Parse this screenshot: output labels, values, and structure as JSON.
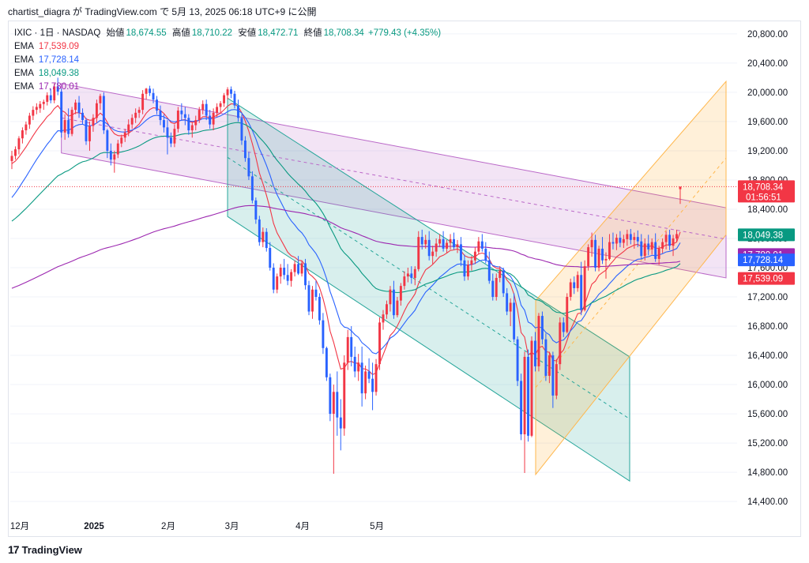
{
  "header": {
    "text": "chartist_diagra が TradingView.com で 5月 13, 2025 06:18 UTC+9 に公開"
  },
  "legend": {
    "symbol": "IXIC · 1日 · NASDAQ",
    "open_label": "始値",
    "open": "18,674.55",
    "high_label": "高値",
    "high": "18,710.22",
    "low_label": "安値",
    "low": "18,472.71",
    "close_label": "終値",
    "close": "18,708.34",
    "change": "+779.43 (+4.35%)",
    "emas": [
      {
        "name": "EMA",
        "value": "17,539.09",
        "color": "#f23645"
      },
      {
        "name": "EMA",
        "value": "17,728.14",
        "color": "#2962ff"
      },
      {
        "name": "EMA",
        "value": "18,049.38",
        "color": "#089981"
      },
      {
        "name": "EMA",
        "value": "17,780.01",
        "color": "#9c27b0"
      }
    ]
  },
  "footer": {
    "brand": "TradingView",
    "logo_text": "17"
  },
  "chart_data": {
    "type": "candlestick",
    "y_ticks": [
      "20,800.00",
      "20,400.00",
      "20,000.00",
      "19,600.00",
      "19,200.00",
      "18,800.00",
      "18,400.00",
      "18,000.00",
      "17,600.00",
      "17,200.00",
      "16,800.00",
      "16,400.00",
      "16,000.00",
      "15,600.00",
      "15,200.00",
      "14,800.00",
      "14,400.00"
    ],
    "y_tick_values": [
      20800,
      20400,
      20000,
      19600,
      19200,
      18800,
      18400,
      18000,
      17600,
      17200,
      16800,
      16400,
      16000,
      15600,
      15200,
      14800,
      14400
    ],
    "ylim": [
      14250,
      20950
    ],
    "x_labels": [
      {
        "label": "12月",
        "bar": 0,
        "bold": false
      },
      {
        "label": "2025",
        "bar": 21,
        "bold": true
      },
      {
        "label": "2月",
        "bar": 42,
        "bold": false
      },
      {
        "label": "3月",
        "bar": 60,
        "bold": false
      },
      {
        "label": "4月",
        "bar": 80,
        "bold": false
      },
      {
        "label": "5月",
        "bar": 101,
        "bold": false
      }
    ],
    "price_badges": [
      {
        "value": 18708.34,
        "label": "18,708.34",
        "sub": "01:56:51",
        "color": "#f23645"
      },
      {
        "value": 18049.38,
        "label": "18,049.38",
        "color": "#089981"
      },
      {
        "value": 17780.01,
        "label": "17,780.01",
        "color": "#9c27b0"
      },
      {
        "value": 17728.14,
        "label": "17,728.14",
        "color": "#2962ff"
      },
      {
        "value": 17539.09,
        "label": "17,539.09",
        "color": "#f23645"
      }
    ],
    "up_color": "#f23645",
    "down_color": "#2962ff",
    "candles": [
      [
        19060,
        19200,
        18950,
        19130
      ],
      [
        19130,
        19260,
        19080,
        19220
      ],
      [
        19220,
        19400,
        19150,
        19370
      ],
      [
        19370,
        19520,
        19300,
        19480
      ],
      [
        19480,
        19600,
        19420,
        19560
      ],
      [
        19560,
        19720,
        19500,
        19680
      ],
      [
        19680,
        19810,
        19620,
        19760
      ],
      [
        19760,
        19850,
        19700,
        19800
      ],
      [
        19780,
        19880,
        19720,
        19840
      ],
      [
        19840,
        19900,
        19760,
        19870
      ],
      [
        19870,
        20000,
        19820,
        19960
      ],
      [
        19960,
        20050,
        19850,
        19890
      ],
      [
        19890,
        20120,
        19850,
        20080
      ],
      [
        20080,
        20200,
        19960,
        20010
      ],
      [
        20010,
        20050,
        19380,
        19450
      ],
      [
        19450,
        19700,
        19350,
        19620
      ],
      [
        19620,
        19780,
        19380,
        19430
      ],
      [
        19430,
        19800,
        19400,
        19760
      ],
      [
        19760,
        19900,
        19700,
        19860
      ],
      [
        19860,
        19950,
        19650,
        19720
      ],
      [
        19720,
        19780,
        19560,
        19620
      ],
      [
        19620,
        19650,
        19280,
        19330
      ],
      [
        19330,
        19600,
        19200,
        19540
      ],
      [
        19540,
        19700,
        19460,
        19650
      ],
      [
        19650,
        19900,
        19580,
        19850
      ],
      [
        19850,
        19980,
        19760,
        19950
      ],
      [
        19950,
        20000,
        19430,
        19480
      ],
      [
        19480,
        19500,
        19100,
        19200
      ],
      [
        19200,
        19300,
        19000,
        19080
      ],
      [
        19080,
        19200,
        18900,
        19150
      ],
      [
        19150,
        19350,
        19100,
        19300
      ],
      [
        19300,
        19420,
        19250,
        19380
      ],
      [
        19380,
        19500,
        19320,
        19450
      ],
      [
        19450,
        19630,
        19400,
        19560
      ],
      [
        19560,
        19700,
        19500,
        19650
      ],
      [
        19650,
        19780,
        19580,
        19720
      ],
      [
        19720,
        19800,
        19650,
        19760
      ],
      [
        19760,
        20030,
        19700,
        19980
      ],
      [
        19980,
        20060,
        19900,
        20050
      ],
      [
        20050,
        20090,
        19950,
        19990
      ],
      [
        19990,
        20050,
        19850,
        19900
      ],
      [
        19900,
        19950,
        19700,
        19750
      ],
      [
        19750,
        19820,
        19550,
        19620
      ],
      [
        19620,
        19700,
        19450,
        19520
      ],
      [
        19520,
        19620,
        19150,
        19380
      ],
      [
        19380,
        19450,
        19250,
        19300
      ],
      [
        19300,
        19560,
        19250,
        19500
      ],
      [
        19500,
        19800,
        19450,
        19750
      ],
      [
        19750,
        19850,
        19620,
        19700
      ],
      [
        19700,
        19800,
        19550,
        19650
      ],
      [
        19650,
        19700,
        19420,
        19480
      ],
      [
        19480,
        19600,
        19380,
        19550
      ],
      [
        19550,
        19680,
        19480,
        19620
      ],
      [
        19620,
        19800,
        19580,
        19760
      ],
      [
        19760,
        19890,
        19700,
        19840
      ],
      [
        19840,
        19900,
        19620,
        19680
      ],
      [
        19680,
        19760,
        19500,
        19560
      ],
      [
        19560,
        19780,
        19480,
        19720
      ],
      [
        19720,
        19850,
        19660,
        19800
      ],
      [
        19800,
        19880,
        19720,
        19850
      ],
      [
        19850,
        19990,
        19800,
        19960
      ],
      [
        19960,
        20070,
        19900,
        20040
      ],
      [
        20040,
        20080,
        19920,
        19980
      ],
      [
        19980,
        20020,
        19780,
        19820
      ],
      [
        19820,
        19900,
        19600,
        19650
      ],
      [
        19650,
        19700,
        19280,
        19340
      ],
      [
        19340,
        19400,
        19050,
        19100
      ],
      [
        19100,
        19180,
        18800,
        18850
      ],
      [
        18850,
        18920,
        18480,
        18520
      ],
      [
        18520,
        18560,
        18200,
        18260
      ],
      [
        18260,
        18310,
        17900,
        17950
      ],
      [
        17950,
        18150,
        17880,
        18090
      ],
      [
        18090,
        18140,
        17820,
        17870
      ],
      [
        17870,
        17950,
        17560,
        17600
      ],
      [
        17600,
        17660,
        17250,
        17300
      ],
      [
        17300,
        17520,
        17250,
        17480
      ],
      [
        17480,
        17650,
        17380,
        17600
      ],
      [
        17600,
        17720,
        17440,
        17500
      ],
      [
        17500,
        17650,
        17360,
        17420
      ],
      [
        17420,
        17580,
        17340,
        17540
      ],
      [
        17540,
        17700,
        17480,
        17650
      ],
      [
        17650,
        17760,
        17500,
        17520
      ],
      [
        17520,
        17700,
        17480,
        17660
      ],
      [
        17660,
        17720,
        17300,
        17360
      ],
      [
        17360,
        17420,
        16950,
        17000
      ],
      [
        17000,
        17350,
        16900,
        17300
      ],
      [
        17300,
        17420,
        17150,
        17200
      ],
      [
        17200,
        17250,
        16820,
        16880
      ],
      [
        16880,
        16980,
        16420,
        16500
      ],
      [
        16500,
        16520,
        16050,
        16100
      ],
      [
        16100,
        16150,
        15500,
        15600
      ],
      [
        15600,
        16000,
        14780,
        15900
      ],
      [
        15900,
        16180,
        15300,
        15550
      ],
      [
        15550,
        15800,
        15100,
        15400
      ],
      [
        15400,
        16400,
        15300,
        16300
      ],
      [
        16300,
        16750,
        16200,
        16650
      ],
      [
        16650,
        16800,
        16250,
        16380
      ],
      [
        16380,
        16520,
        16100,
        16180
      ],
      [
        16180,
        16420,
        16050,
        16300
      ],
      [
        16300,
        16520,
        15700,
        15880
      ],
      [
        15880,
        16260,
        15800,
        16180
      ],
      [
        16180,
        16360,
        16020,
        16080
      ],
      [
        16080,
        16300,
        15650,
        15900
      ],
      [
        15900,
        16350,
        15850,
        16280
      ],
      [
        16280,
        16920,
        16200,
        16850
      ],
      [
        16850,
        17020,
        16750,
        16960
      ],
      [
        16960,
        17150,
        16900,
        17100
      ],
      [
        17100,
        17350,
        17000,
        17300
      ],
      [
        17300,
        17420,
        16900,
        16950
      ],
      [
        16950,
        17200,
        16920,
        17150
      ],
      [
        17150,
        17390,
        17080,
        17350
      ],
      [
        17350,
        17550,
        17300,
        17480
      ],
      [
        17480,
        17600,
        17400,
        17520
      ],
      [
        17520,
        17620,
        17380,
        17460
      ],
      [
        17460,
        17620,
        17360,
        17580
      ],
      [
        17580,
        18100,
        17550,
        18020
      ],
      [
        18020,
        18120,
        17850,
        17920
      ],
      [
        17920,
        18050,
        17860,
        17980
      ],
      [
        17980,
        18100,
        17700,
        17760
      ],
      [
        17760,
        17900,
        17650,
        17820
      ],
      [
        17820,
        18000,
        17750,
        17930
      ],
      [
        17930,
        18060,
        17880,
        17990
      ],
      [
        17990,
        18100,
        17820,
        17860
      ],
      [
        17860,
        17980,
        17800,
        17940
      ],
      [
        17940,
        18060,
        17850,
        17990
      ],
      [
        17990,
        18080,
        17850,
        17880
      ],
      [
        17880,
        17980,
        17800,
        17920
      ],
      [
        17920,
        18020,
        17620,
        17700
      ],
      [
        17700,
        17780,
        17420,
        17480
      ],
      [
        17480,
        17700,
        17430,
        17640
      ],
      [
        17640,
        17760,
        17560,
        17700
      ],
      [
        17700,
        17880,
        17650,
        17820
      ],
      [
        17820,
        18020,
        17780,
        17960
      ],
      [
        17960,
        18060,
        17820,
        17860
      ],
      [
        17860,
        17950,
        17660,
        17700
      ],
      [
        17700,
        17820,
        17380,
        17420
      ],
      [
        17420,
        17520,
        17150,
        17200
      ],
      [
        17200,
        17520,
        17150,
        17460
      ],
      [
        17460,
        17620,
        17400,
        17560
      ],
      [
        17560,
        17600,
        17200,
        17250
      ],
      [
        17250,
        17320,
        16950,
        17000
      ],
      [
        17000,
        17180,
        16800,
        17120
      ],
      [
        17120,
        17250,
        16580,
        16620
      ],
      [
        16620,
        16660,
        15980,
        16050
      ],
      [
        16050,
        16150,
        15240,
        15320
      ],
      [
        15320,
        16450,
        14790,
        16380
      ],
      [
        16380,
        16480,
        15220,
        15300
      ],
      [
        15300,
        16660,
        15280,
        16600
      ],
      [
        16600,
        16720,
        16180,
        16250
      ],
      [
        16250,
        16980,
        16180,
        16940
      ],
      [
        16940,
        17000,
        16550,
        16620
      ],
      [
        16620,
        16700,
        16050,
        16120
      ],
      [
        16120,
        16450,
        16020,
        16400
      ],
      [
        16400,
        16450,
        15680,
        15850
      ],
      [
        15850,
        16350,
        15800,
        16280
      ],
      [
        16280,
        16920,
        16200,
        16850
      ],
      [
        16850,
        16920,
        16650,
        16720
      ],
      [
        16720,
        17250,
        16700,
        17200
      ],
      [
        17200,
        17450,
        17150,
        17400
      ],
      [
        17400,
        17480,
        17240,
        17320
      ],
      [
        17320,
        17550,
        17270,
        17500
      ],
      [
        17500,
        17680,
        16950,
        17020
      ],
      [
        17020,
        17700,
        17000,
        17620
      ],
      [
        17620,
        17920,
        17560,
        17880
      ],
      [
        17880,
        18080,
        17750,
        17980
      ],
      [
        17980,
        18050,
        17550,
        17600
      ],
      [
        17600,
        17900,
        17550,
        17860
      ],
      [
        17860,
        18020,
        17650,
        17700
      ],
      [
        17700,
        17810,
        17450,
        17720
      ],
      [
        17720,
        18060,
        17700,
        17950
      ],
      [
        17950,
        18080,
        17850,
        17930
      ],
      [
        17930,
        18060,
        17840,
        18010
      ],
      [
        18010,
        18100,
        17880,
        17940
      ],
      [
        17940,
        18050,
        17870,
        17990
      ],
      [
        17990,
        18120,
        17900,
        18060
      ],
      [
        18060,
        18130,
        17920,
        17980
      ],
      [
        17980,
        18080,
        17860,
        18020
      ],
      [
        18020,
        18110,
        17880,
        17960
      ],
      [
        17960,
        18060,
        17720,
        17760
      ],
      [
        17760,
        18000,
        17700,
        17930
      ],
      [
        17930,
        18050,
        17770,
        17850
      ],
      [
        17850,
        18000,
        17780,
        17950
      ],
      [
        17950,
        18070,
        17680,
        17720
      ],
      [
        17720,
        17900,
        17640,
        17860
      ],
      [
        17860,
        18000,
        17800,
        17950
      ],
      [
        17950,
        18100,
        17850,
        18050
      ],
      [
        18050,
        18120,
        17840,
        17900
      ],
      [
        17900,
        18050,
        17760,
        18000
      ],
      [
        18000,
        18120,
        17950,
        18060
      ],
      [
        18674.55,
        18710.22,
        18472.71,
        18708.34
      ]
    ]
  }
}
